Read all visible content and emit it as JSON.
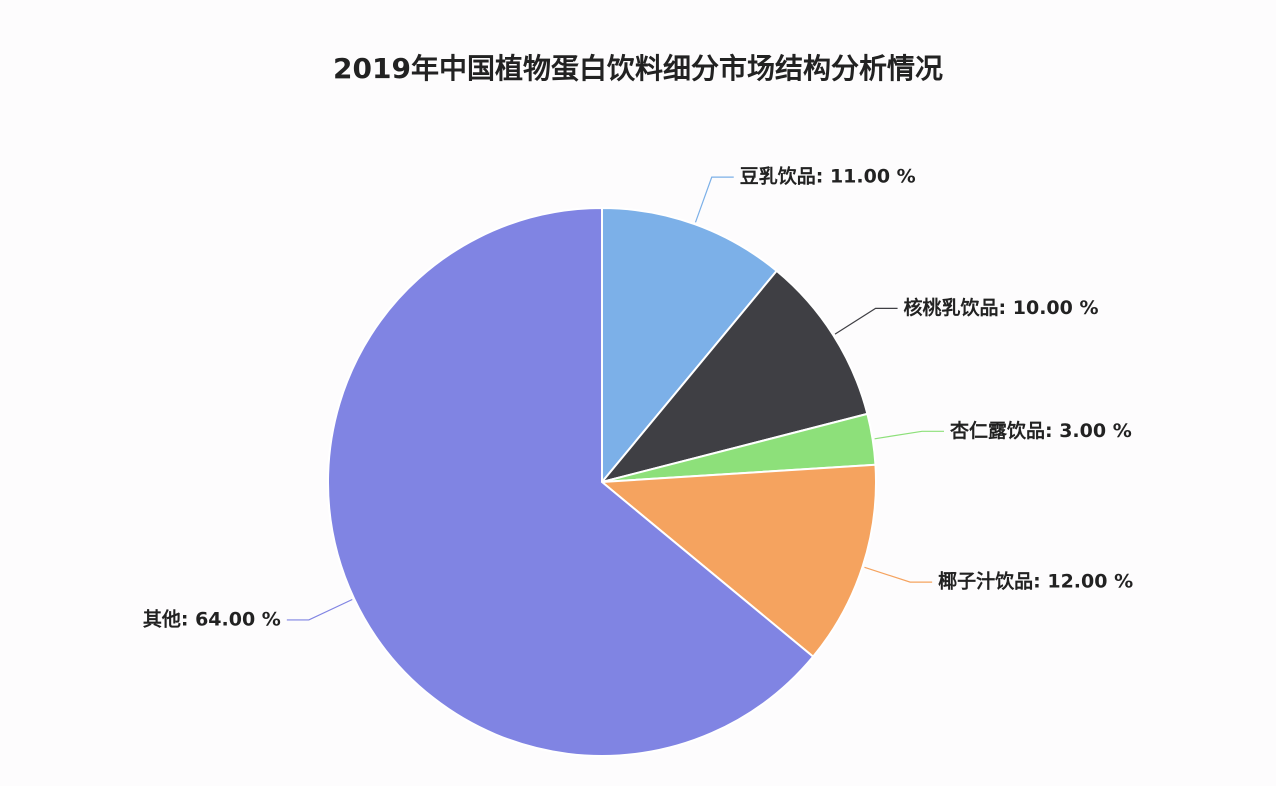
{
  "chart_data": {
    "type": "pie",
    "title": "2019年中国植物蛋白饮料细分市场结构分析情况",
    "labels": [
      "豆乳饮品: 11.00 %",
      "核桃乳饮品: 10.00 %",
      "杏仁露饮品: 3.00 %",
      "椰子汁饮品: 12.00 %",
      "其他: 64.00 %"
    ],
    "values": [
      11,
      10,
      3,
      12,
      64
    ],
    "colors": [
      "#7cb0e8",
      "#3f3f44",
      "#8de07a",
      "#f5a35f",
      "#8084e3"
    ]
  }
}
